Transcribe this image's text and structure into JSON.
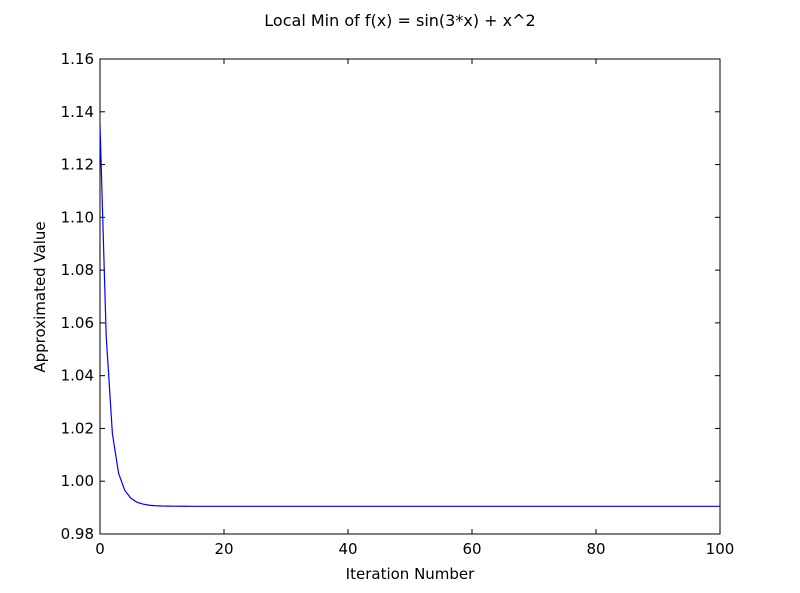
{
  "chart_data": {
    "type": "line",
    "title": "Local Min of f(x) = sin(3*x) + x^2",
    "xlabel": "Iteration Number",
    "ylabel": "Approximated Value",
    "xlim": [
      0,
      100
    ],
    "ylim": [
      0.98,
      1.16
    ],
    "xticks": [
      "0",
      "20",
      "40",
      "60",
      "80",
      "100"
    ],
    "yticks": [
      "0.98",
      "1.00",
      "1.02",
      "1.04",
      "1.06",
      "1.08",
      "1.10",
      "1.12",
      "1.14",
      "1.16"
    ],
    "grid": false,
    "series_color": "#0000ff",
    "x": [
      0,
      1,
      2,
      3,
      4,
      5,
      6,
      7,
      8,
      9,
      10,
      11,
      12,
      13,
      14,
      15,
      20,
      30,
      40,
      50,
      60,
      70,
      80,
      90,
      100
    ],
    "y": [
      1.135,
      1.055,
      1.018,
      1.003,
      0.9965,
      0.9935,
      0.992,
      0.9913,
      0.9909,
      0.9907,
      0.9906,
      0.99055,
      0.99053,
      0.99052,
      0.99051,
      0.9905,
      0.9905,
      0.9905,
      0.9905,
      0.9905,
      0.9905,
      0.9905,
      0.9905,
      0.9905,
      0.9905
    ]
  }
}
